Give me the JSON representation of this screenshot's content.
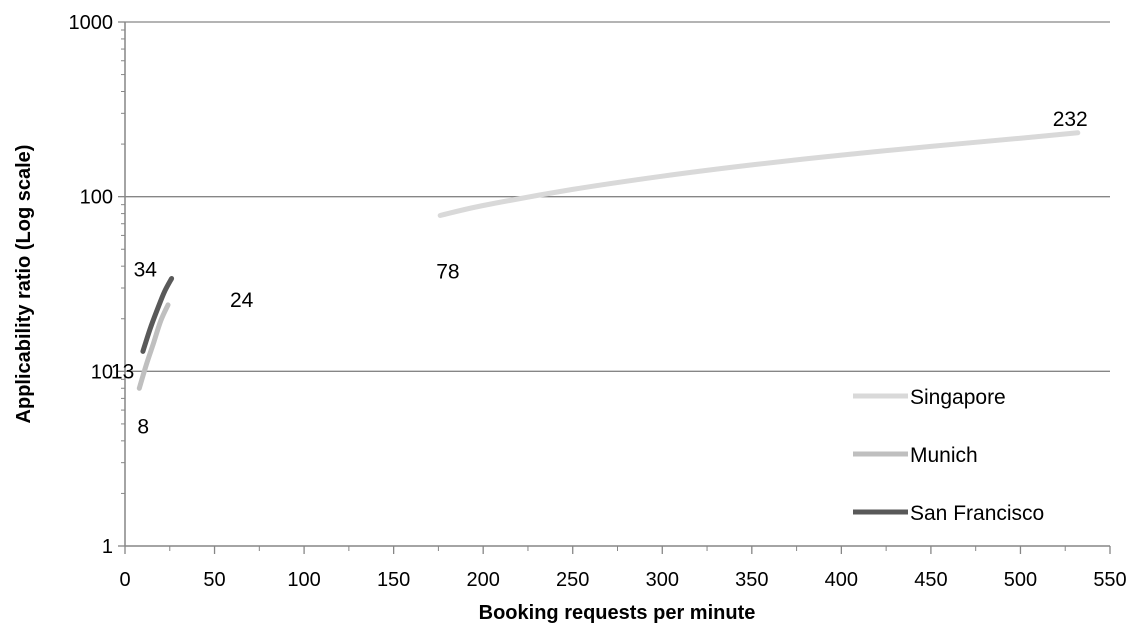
{
  "chart_data": {
    "type": "line",
    "title": "",
    "xlabel": "Booking requests per minute",
    "ylabel": "Applicability ratio (Log scale)",
    "xlim": [
      0,
      550
    ],
    "ylim": [
      1,
      1000
    ],
    "y_scale": "log",
    "x_ticks": [
      0,
      50,
      100,
      150,
      200,
      250,
      300,
      350,
      400,
      450,
      500,
      550
    ],
    "x_tick_labels": [
      "0",
      "50",
      "100",
      "150",
      "200",
      "250",
      "300",
      "350",
      "400",
      "450",
      "500",
      "550"
    ],
    "y_ticks": [
      1,
      10,
      100,
      1000
    ],
    "y_tick_labels": [
      "1",
      "10",
      "100",
      "1000"
    ],
    "grid": "horizontal",
    "legend_position": "bottom-right",
    "series": [
      {
        "name": "Singapore",
        "color": "#d9d9d9",
        "x": [
          176,
          200,
          250,
          300,
          350,
          400,
          450,
          500,
          532
        ],
        "y": [
          78,
          89,
          110,
          131,
          152,
          173,
          194,
          216,
          232
        ],
        "point_labels": [
          {
            "x": 176,
            "y": 78,
            "text": "78"
          },
          {
            "x": 532,
            "y": 232,
            "text": "232"
          }
        ]
      },
      {
        "name": "Munich",
        "color": "#bfbfbf",
        "x": [
          8,
          12,
          16,
          20,
          24
        ],
        "y": [
          8,
          11,
          14.6,
          19.5,
          24
        ],
        "point_labels": [
          {
            "x": 8,
            "y": 8,
            "text": "8"
          },
          {
            "x": 24,
            "y": 24,
            "text": "24"
          }
        ]
      },
      {
        "name": "San Francisco",
        "color": "#595959",
        "x": [
          10,
          14,
          18,
          22,
          26
        ],
        "y": [
          13,
          17.5,
          22.5,
          28.5,
          34
        ],
        "point_labels": [
          {
            "x": 10,
            "y": 13,
            "text": "13"
          },
          {
            "x": 26,
            "y": 34,
            "text": "34"
          }
        ]
      }
    ]
  }
}
